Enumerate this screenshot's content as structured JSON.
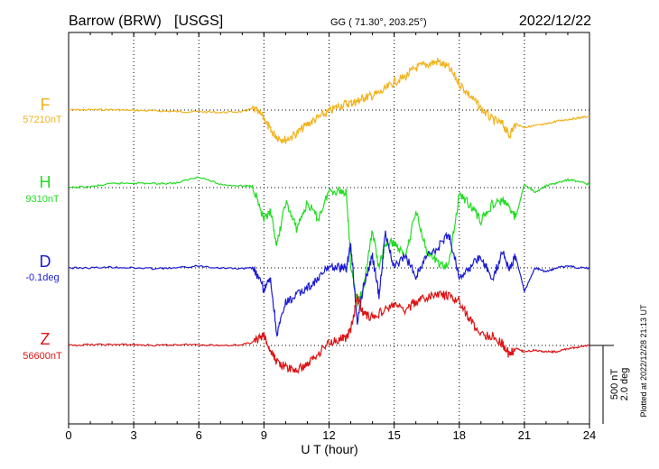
{
  "header": {
    "station": "Barrow (BRW)",
    "source": "[USGS]",
    "coords": "GG ( 71.30°, 203.25°)",
    "date": "2022/12/22"
  },
  "footer": {
    "plotted": "Plotted at 2022/12/28 21:13 UT"
  },
  "chart_data": {
    "type": "line",
    "xlabel": "U T (hour)",
    "xlim": [
      0,
      24
    ],
    "xticks": [
      0,
      3,
      6,
      9,
      12,
      15,
      18,
      21,
      24
    ],
    "xtick_labels": [
      "0",
      "3",
      "6",
      "9",
      "12",
      "15",
      "18",
      "21",
      "24"
    ],
    "grid": true,
    "scale": {
      "nt": "500 nT",
      "deg": "2.0 deg"
    },
    "series": [
      {
        "name": "F",
        "baseline_label": "57210nT",
        "unit": "nT",
        "baseline": 57210,
        "color": "#f2b21c",
        "x": [
          0,
          1,
          2,
          3,
          4,
          5,
          6,
          7,
          8,
          8.5,
          9,
          9.3,
          9.6,
          10,
          10.5,
          11,
          11.5,
          12,
          12.5,
          13,
          13.3,
          13.6,
          14,
          14.5,
          15,
          15.5,
          16,
          16.5,
          17,
          17.5,
          18,
          18.5,
          19,
          19.5,
          20,
          20.3,
          20.6,
          21,
          21.5,
          22,
          22.5,
          23,
          23.5,
          24
        ],
        "y": [
          57210,
          57212,
          57212,
          57208,
          57205,
          57200,
          57200,
          57195,
          57200,
          57220,
          57160,
          57080,
          57040,
          57020,
          57060,
          57120,
          57160,
          57200,
          57240,
          57255,
          57265,
          57290,
          57300,
          57330,
          57390,
          57420,
          57480,
          57500,
          57520,
          57480,
          57380,
          57300,
          57220,
          57150,
          57120,
          57050,
          57120,
          57100,
          57110,
          57120,
          57140,
          57150,
          57160,
          57170
        ]
      },
      {
        "name": "H",
        "baseline_label": "9310nT",
        "unit": "nT",
        "baseline": 9310,
        "color": "#22dd22",
        "x": [
          0,
          1,
          2,
          3,
          4,
          5,
          6,
          7,
          8,
          8.5,
          9,
          9.3,
          9.6,
          10,
          10.5,
          11,
          11.5,
          12,
          12.5,
          12.8,
          13,
          13.3,
          13.6,
          14,
          14.3,
          14.6,
          15,
          15.5,
          16,
          16.5,
          17,
          17.5,
          18,
          18.5,
          19,
          19.5,
          20,
          20.3,
          20.6,
          21,
          21.5,
          22,
          22.5,
          23,
          23.5,
          24
        ],
        "y": [
          9310,
          9315,
          9335,
          9340,
          9335,
          9340,
          9380,
          9330,
          9320,
          9320,
          9100,
          9150,
          8940,
          9220,
          9050,
          9210,
          9110,
          9290,
          9290,
          9280,
          8820,
          8560,
          8680,
          9040,
          8800,
          8950,
          8960,
          8870,
          9160,
          8910,
          8830,
          8800,
          9270,
          9200,
          9100,
          9200,
          9230,
          9180,
          9120,
          9330,
          9280,
          9320,
          9340,
          9360,
          9350,
          9330
        ]
      },
      {
        "name": "D",
        "baseline_label": "-0.1deg",
        "unit": "deg",
        "baseline": -0.1,
        "color": "#1a1ad4",
        "x": [
          0,
          1,
          2,
          3,
          4,
          5,
          6,
          7,
          8,
          8.5,
          9,
          9.3,
          9.6,
          10,
          10.5,
          11,
          11.5,
          12,
          12.5,
          12.8,
          13,
          13.3,
          13.6,
          14,
          14.3,
          14.6,
          15,
          15.5,
          16,
          16.5,
          17,
          17.5,
          18,
          18.5,
          19,
          19.5,
          20,
          20.3,
          20.6,
          21,
          21.5,
          22,
          22.5,
          23,
          23.5,
          24
        ],
        "y": [
          -0.1,
          -0.1,
          -0.08,
          -0.1,
          -0.12,
          -0.1,
          -0.05,
          -0.1,
          -0.12,
          -0.1,
          -0.65,
          -0.4,
          -1.8,
          -1.0,
          -0.8,
          -0.6,
          -0.4,
          -0.05,
          -0.1,
          -0.1,
          0.5,
          -1.5,
          -0.5,
          0.2,
          -0.8,
          0.8,
          -0.1,
          0.2,
          -0.3,
          0.2,
          0.4,
          0.8,
          -0.3,
          -0.1,
          0.2,
          -0.4,
          0.3,
          -0.1,
          0.2,
          -0.7,
          -0.1,
          -0.2,
          -0.1,
          -0.05,
          -0.1,
          -0.1
        ]
      },
      {
        "name": "Z",
        "baseline_label": "56600nT",
        "unit": "nT",
        "baseline": 56600,
        "color": "#dd1414",
        "x": [
          0,
          1,
          2,
          3,
          4,
          5,
          6,
          7,
          8,
          8.5,
          9,
          9.3,
          9.6,
          10,
          10.5,
          11,
          11.5,
          12,
          12.5,
          12.8,
          13,
          13.3,
          13.6,
          14,
          14.5,
          15,
          15.5,
          16,
          16.5,
          17,
          17.5,
          18,
          18.5,
          19,
          19.5,
          20,
          20.3,
          20.6,
          21,
          21.5,
          22,
          22.5,
          23,
          23.5,
          24
        ],
        "y": [
          56600,
          56605,
          56605,
          56605,
          56600,
          56605,
          56605,
          56600,
          56605,
          56620,
          56660,
          56560,
          56500,
          56460,
          56440,
          56480,
          56550,
          56620,
          56640,
          56650,
          56700,
          56910,
          56800,
          56780,
          56820,
          56860,
          56820,
          56880,
          56900,
          56930,
          56910,
          56880,
          56760,
          56670,
          56660,
          56610,
          56540,
          56580,
          56560,
          56570,
          56560,
          56560,
          56580,
          56590,
          56600
        ]
      }
    ]
  }
}
